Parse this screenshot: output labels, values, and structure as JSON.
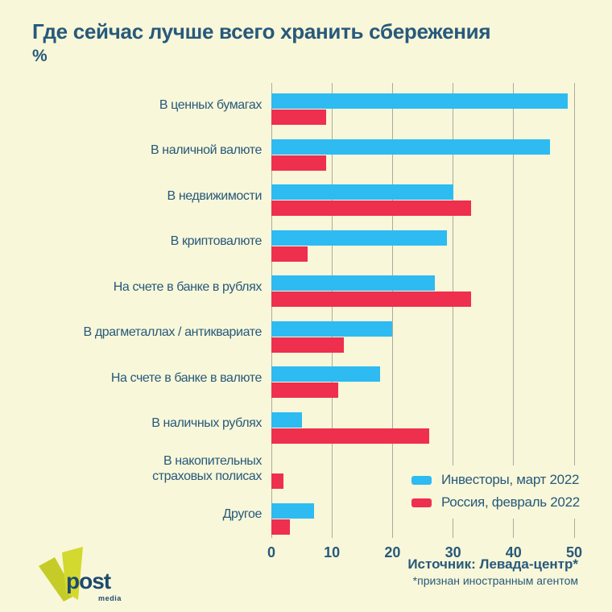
{
  "page": {
    "title": "Где сейчас лучше всего хранить сбережения",
    "subtitle": "%",
    "background": "#f8f7d9",
    "text_color": "#27597b"
  },
  "chart_data": {
    "type": "bar",
    "orientation": "horizontal",
    "title": "Где сейчас лучше всего хранить сбережения",
    "units": "%",
    "categories": [
      "В ценных бумагах",
      "В наличной валюте",
      "В недвижимости",
      "В криптовалюте",
      "На счете в банке в рублях",
      "В драгметаллах / антиквариате",
      "На счете в банке в валюте",
      "В наличных рублях",
      "В накопительных страховых полисах",
      "Другое"
    ],
    "series": [
      {
        "name": "Инвесторы, март 2022",
        "color": "#2dbbf2",
        "values": [
          49,
          46,
          30,
          29,
          27,
          20,
          18,
          5,
          0,
          7
        ]
      },
      {
        "name": "Россия, февраль 2022",
        "color": "#ee2f4e",
        "values": [
          9,
          9,
          33,
          6,
          33,
          12,
          11,
          26,
          2,
          3
        ]
      }
    ],
    "xlim": [
      0,
      50
    ],
    "x_ticks": [
      0,
      10,
      20,
      30,
      40,
      50
    ],
    "grid": true,
    "gridline_color": "#a9aba0",
    "legend_position": "bottom-right"
  },
  "footer": {
    "source_line1": "Источник: Левада-центр*",
    "source_line2": "*признан иностранным агентом",
    "logo": {
      "word": "post",
      "sub": "media",
      "v_color": "#ced32c",
      "text_color": "#1d4a70"
    }
  }
}
